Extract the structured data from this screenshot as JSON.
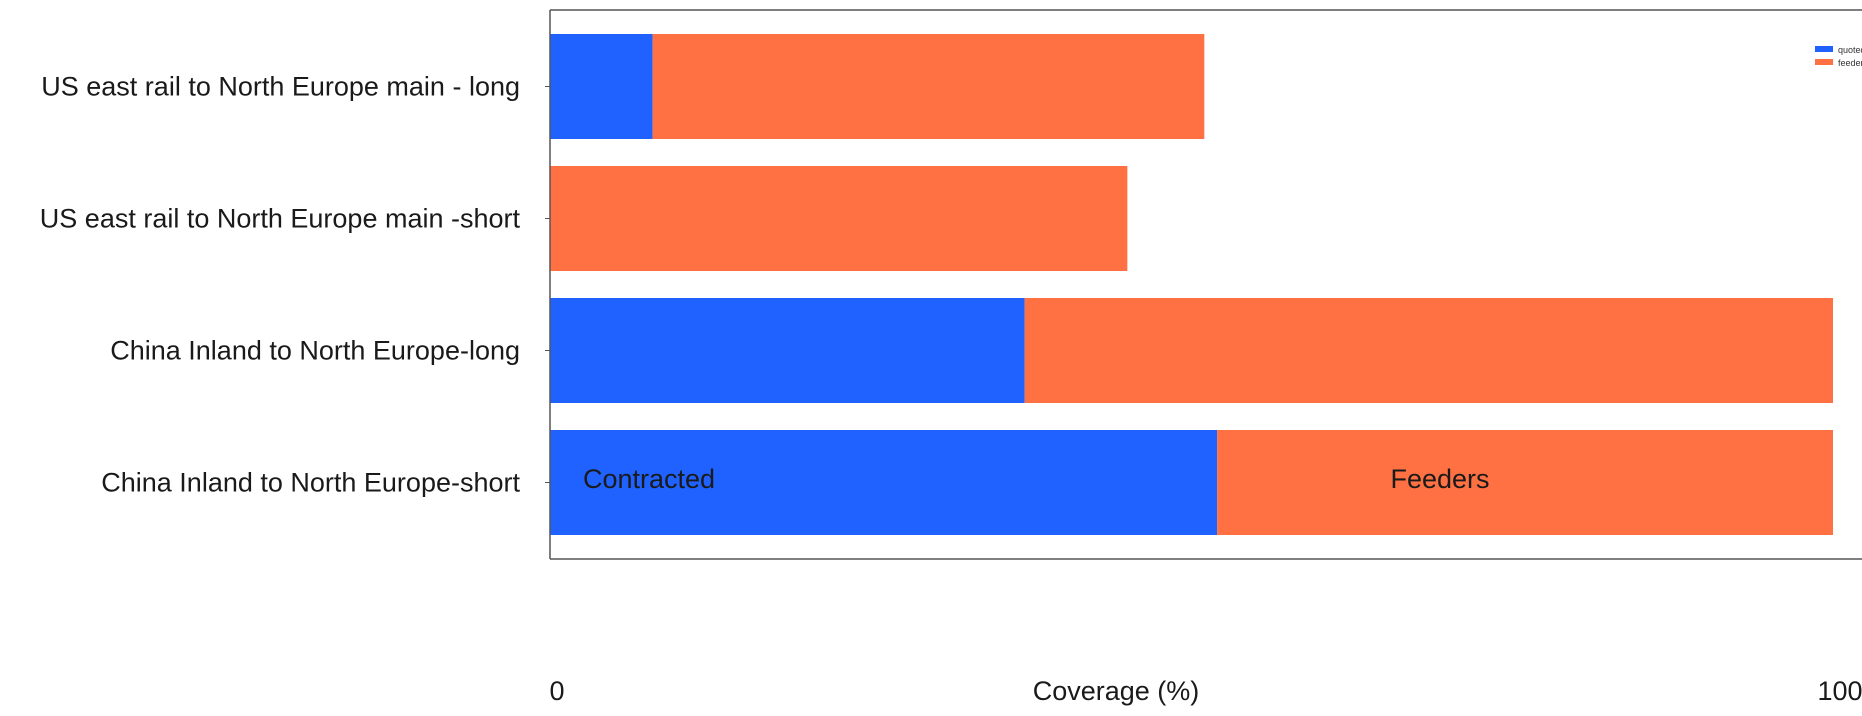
{
  "chart_data": {
    "type": "bar",
    "orientation": "horizontal",
    "stacked": true,
    "categories": [
      "US east rail to North Europe main - long",
      "US east rail to North Europe main -short",
      "China Inland to North Europe-long",
      "China Inland to North Europe-short"
    ],
    "series": [
      {
        "name": "quoted",
        "color": "#1f62ff",
        "values": [
          8,
          0,
          37,
          52
        ]
      },
      {
        "name": "feeder",
        "color": "#ff7043",
        "values": [
          43,
          45,
          63,
          48
        ]
      }
    ],
    "xlabel": "Coverage (%)",
    "ylabel": "",
    "xlim": [
      0,
      100
    ],
    "xticks": [
      "0",
      "100"
    ],
    "annotations": [
      "Contracted",
      "Feeders"
    ],
    "grid": false,
    "legend": "top-right"
  }
}
